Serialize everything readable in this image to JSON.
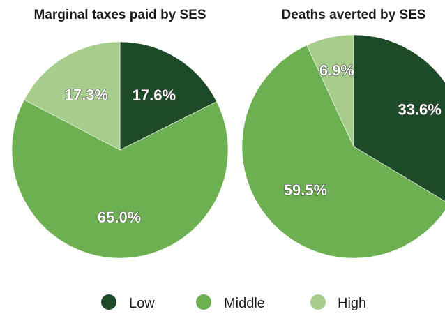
{
  "colors": {
    "low": "#1d4a27",
    "middle": "#6cb052",
    "high": "#a6cd8c"
  },
  "legend": [
    {
      "label": "Low",
      "color_key": "low"
    },
    {
      "label": "Middle",
      "color_key": "middle"
    },
    {
      "label": "High",
      "color_key": "high"
    }
  ],
  "chart_data": [
    {
      "type": "pie",
      "title": "Marginal taxes paid by SES",
      "categories": [
        "Low",
        "Middle",
        "High"
      ],
      "values": [
        17.6,
        65.0,
        17.3
      ],
      "data_labels": [
        "17.6%",
        "65.0%",
        "17.3%"
      ],
      "start": "12 o'clock, clockwise",
      "legend_position": "bottom"
    },
    {
      "type": "pie",
      "title": "Deaths averted by SES",
      "categories": [
        "Low",
        "Middle",
        "High"
      ],
      "values": [
        33.6,
        59.5,
        6.9
      ],
      "data_labels": [
        "33.6%",
        "59.5%",
        "6.9%"
      ],
      "start": "12 o'clock, clockwise",
      "legend_position": "bottom"
    }
  ]
}
